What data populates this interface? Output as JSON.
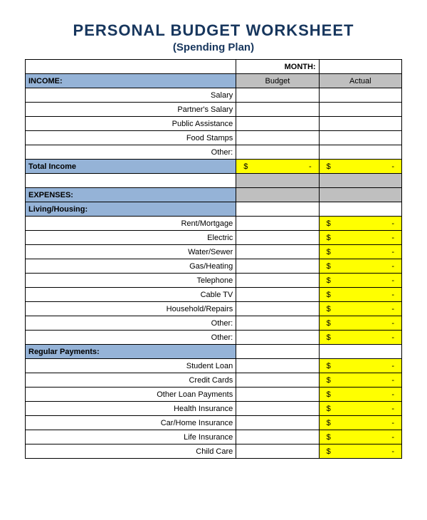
{
  "title": "PERSONAL BUDGET WORKSHEET",
  "subtitle": "(Spending Plan)",
  "colors": {
    "title_color": "#17365d",
    "blue_header": "#95b3d7",
    "gray_header": "#bfbfbf",
    "yellow_total": "#ffff00",
    "border": "#000000",
    "background": "#ffffff"
  },
  "month_label": "MONTH:",
  "month_value": "",
  "col_headers": {
    "budget": "Budget",
    "actual": "Actual"
  },
  "income": {
    "header": "INCOME:",
    "items": [
      "Salary",
      "Partner's Salary",
      "Public Assistance",
      "Food Stamps",
      "Other:"
    ],
    "total_label": "Total Income",
    "total_budget": {
      "sym": "$",
      "val": "-"
    },
    "total_actual": {
      "sym": "$",
      "val": "-"
    }
  },
  "expenses": {
    "header": "EXPENSES:"
  },
  "living": {
    "header": "Living/Housing:",
    "items": [
      {
        "label": "Rent/Mortgage",
        "actual": {
          "sym": "$",
          "val": "-"
        }
      },
      {
        "label": "Electric",
        "actual": {
          "sym": "$",
          "val": "-"
        }
      },
      {
        "label": "Water/Sewer",
        "actual": {
          "sym": "$",
          "val": "-"
        }
      },
      {
        "label": "Gas/Heating",
        "actual": {
          "sym": "$",
          "val": "-"
        }
      },
      {
        "label": "Telephone",
        "actual": {
          "sym": "$",
          "val": "-"
        }
      },
      {
        "label": "Cable TV",
        "actual": {
          "sym": "$",
          "val": "-"
        }
      },
      {
        "label": "Household/Repairs",
        "actual": {
          "sym": "$",
          "val": "-"
        }
      },
      {
        "label": "Other:",
        "actual": {
          "sym": "$",
          "val": "-"
        }
      },
      {
        "label": "Other:",
        "actual": {
          "sym": "$",
          "val": "-"
        }
      }
    ]
  },
  "regular": {
    "header": "Regular Payments:",
    "items": [
      {
        "label": "Student Loan",
        "actual": {
          "sym": "$",
          "val": "-"
        }
      },
      {
        "label": "Credit Cards",
        "actual": {
          "sym": "$",
          "val": "-"
        }
      },
      {
        "label": "Other Loan Payments",
        "actual": {
          "sym": "$",
          "val": "-"
        }
      },
      {
        "label": "Health Insurance",
        "actual": {
          "sym": "$",
          "val": "-"
        }
      },
      {
        "label": "Car/Home Insurance",
        "actual": {
          "sym": "$",
          "val": "-"
        }
      },
      {
        "label": "Life Insurance",
        "actual": {
          "sym": "$",
          "val": "-"
        }
      },
      {
        "label": "Child Care",
        "actual": {
          "sym": "$",
          "val": "-"
        }
      }
    ]
  },
  "fonts": {
    "title_size_pt": 22,
    "subtitle_size_pt": 15,
    "body_size_pt": 11,
    "family": "Arial"
  }
}
